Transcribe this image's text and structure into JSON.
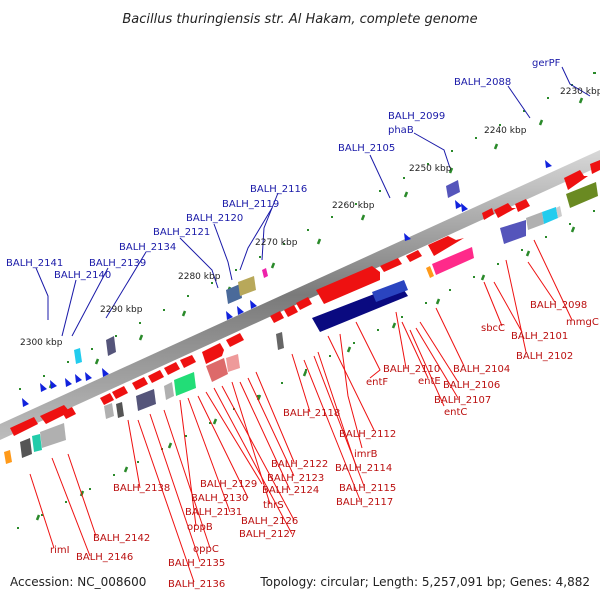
{
  "title": "Bacillus thuringiensis str. Al Hakam, complete genome",
  "footer": {
    "accession": "Accession: NC_008600",
    "topology": "Topology: circular; Length: 5,257,091 bp; Genes: 4,882"
  },
  "scale_labels": [
    "2230 kbp",
    "2240 kbp",
    "2250 kbp",
    "2260 kbp",
    "2270 kbp",
    "2280 kbp",
    "2290 kbp",
    "2300 kbp"
  ],
  "top_labels": [
    "gerPF",
    "BALH_2088",
    "BALH_2099",
    "phaB",
    "BALH_2105",
    "BALH_2116",
    "BALH_2119",
    "BALH_2120",
    "BALH_2121",
    "BALH_2134",
    "BALH_2139",
    "BALH_2141",
    "BALH_2140"
  ],
  "bottom_labels": [
    "BALH_2098",
    "mmgC",
    "sbcC",
    "BALH_2101",
    "BALH_2102",
    "BALH_2104",
    "BALH_2110",
    "entF",
    "entE",
    "BALH_2106",
    "BALH_2107",
    "entC",
    "imrB",
    "BALH_2112",
    "BALH_2118",
    "BALH_2114",
    "BALH_2115",
    "BALH_2117",
    "BALH_2122",
    "BALH_2123",
    "BALH_2124",
    "thrS",
    "BALH_2126",
    "BALH_2127",
    "BALH_2129",
    "BALH_2130",
    "BALH_2131",
    "oppB",
    "BALH_2138",
    "oppC",
    "BALH_2135",
    "BALH_2136",
    "BALH_2142",
    "BALH_2146",
    "rimI"
  ],
  "colors": {
    "forward_gene": "#ee1111",
    "reverse_gene": "#1122dd",
    "backbone": "#8a8a8a",
    "tick": "#2a8a2a",
    "label_top": "#1a1aa8",
    "label_bottom": "#bb1010"
  }
}
